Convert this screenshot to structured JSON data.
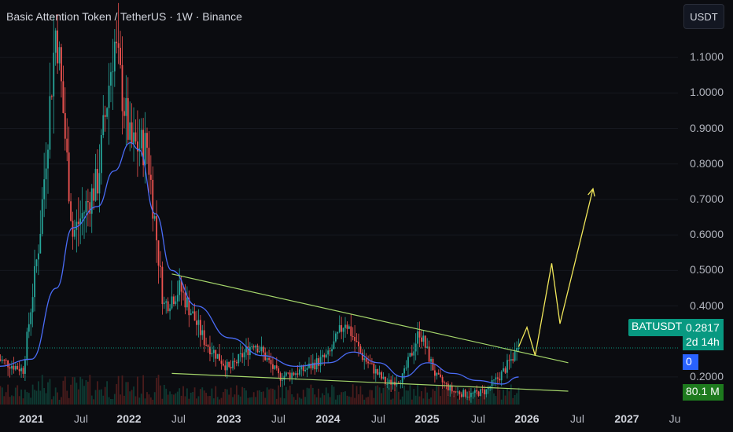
{
  "header": {
    "title": "Basic Attention Token / TetherUS · 1W · Binance",
    "currency_button": "USDT"
  },
  "price_axis": {
    "labels": [
      "1.1000",
      "1.0000",
      "0.9000",
      "0.8000",
      "0.7000",
      "0.6000",
      "0.5000",
      "0.4000",
      "0.2000"
    ],
    "values": [
      1.1,
      1.0,
      0.9,
      0.8,
      0.7,
      0.6,
      0.5,
      0.4,
      0.2
    ]
  },
  "time_axis": {
    "labels": [
      "2021",
      "Jul",
      "2022",
      "Jul",
      "2023",
      "Jul",
      "2024",
      "Jul",
      "2025",
      "Jul",
      "2026",
      "Jul",
      "2027",
      "Ju"
    ],
    "bold": [
      "2021",
      "2022",
      "2023",
      "2024",
      "2025",
      "2026",
      "2027"
    ]
  },
  "tags": {
    "symbol": "BATUSDT",
    "last_price": "0.2817",
    "countdown": "2d 14h",
    "indicator_value": "0",
    "volume": "80.1 M"
  },
  "colors": {
    "background": "#0b0c10",
    "up": "#26a69a",
    "down": "#ef5350",
    "moving_average": "#4a6cf7",
    "trendline": "#a5d66b",
    "projection": "#f0e65a",
    "price_tag": "#089981"
  },
  "chart_data": {
    "type": "candlestick",
    "timeframe": "1W",
    "ylim": [
      0.16,
      1.16
    ],
    "last_price": 0.2817,
    "anchors": [
      {
        "date": "2020-09",
        "price": 0.25
      },
      {
        "date": "2020-12",
        "price": 0.22
      },
      {
        "date": "2021-02",
        "price": 0.6
      },
      {
        "date": "2021-04",
        "price": 1.2
      },
      {
        "date": "2021-06",
        "price": 0.6
      },
      {
        "date": "2021-09",
        "price": 0.75
      },
      {
        "date": "2021-11",
        "price": 1.15
      },
      {
        "date": "2022-01",
        "price": 0.85
      },
      {
        "date": "2022-03",
        "price": 0.85
      },
      {
        "date": "2022-05",
        "price": 0.4
      },
      {
        "date": "2022-07",
        "price": 0.45
      },
      {
        "date": "2022-10",
        "price": 0.3
      },
      {
        "date": "2023-01",
        "price": 0.22
      },
      {
        "date": "2023-04",
        "price": 0.3
      },
      {
        "date": "2023-07",
        "price": 0.2
      },
      {
        "date": "2023-10",
        "price": 0.22
      },
      {
        "date": "2024-01",
        "price": 0.26
      },
      {
        "date": "2024-03",
        "price": 0.36
      },
      {
        "date": "2024-05",
        "price": 0.26
      },
      {
        "date": "2024-08",
        "price": 0.18
      },
      {
        "date": "2024-10",
        "price": 0.2
      },
      {
        "date": "2024-12",
        "price": 0.33
      },
      {
        "date": "2025-02",
        "price": 0.2
      },
      {
        "date": "2025-04",
        "price": 0.16
      },
      {
        "date": "2025-06",
        "price": 0.15
      },
      {
        "date": "2025-08",
        "price": 0.16
      },
      {
        "date": "2025-10",
        "price": 0.21
      },
      {
        "date": "2025-12",
        "price": 0.2817
      }
    ],
    "moving_average": [
      {
        "date": "2020-09",
        "price": 0.23
      },
      {
        "date": "2021-01",
        "price": 0.25
      },
      {
        "date": "2021-04",
        "price": 0.45
      },
      {
        "date": "2021-06",
        "price": 0.62
      },
      {
        "date": "2021-09",
        "price": 0.68
      },
      {
        "date": "2021-11",
        "price": 0.78
      },
      {
        "date": "2022-01",
        "price": 0.86
      },
      {
        "date": "2022-02",
        "price": 0.84
      },
      {
        "date": "2022-04",
        "price": 0.66
      },
      {
        "date": "2022-06",
        "price": 0.5
      },
      {
        "date": "2022-09",
        "price": 0.4
      },
      {
        "date": "2023-01",
        "price": 0.31
      },
      {
        "date": "2023-05",
        "price": 0.26
      },
      {
        "date": "2023-09",
        "price": 0.23
      },
      {
        "date": "2024-01",
        "price": 0.24
      },
      {
        "date": "2024-04",
        "price": 0.27
      },
      {
        "date": "2024-07",
        "price": 0.24
      },
      {
        "date": "2024-10",
        "price": 0.2
      },
      {
        "date": "2025-01",
        "price": 0.24
      },
      {
        "date": "2025-04",
        "price": 0.21
      },
      {
        "date": "2025-07",
        "price": 0.19
      },
      {
        "date": "2025-10",
        "price": 0.18
      },
      {
        "date": "2025-12",
        "price": 0.2
      }
    ],
    "trendlines": [
      {
        "name": "",
        "from": {
          "date": "2022-06",
          "price": 0.49
        },
        "to": {
          "date": "2026-06",
          "price": 0.24
        }
      },
      {
        "name": "",
        "from": {
          "date": "2022-06",
          "price": 0.21
        },
        "to": {
          "date": "2026-06",
          "price": 0.16
        }
      }
    ],
    "projection": [
      {
        "date": "2025-12",
        "price": 0.285
      },
      {
        "date": "2026-01",
        "price": 0.34
      },
      {
        "date": "2026-02",
        "price": 0.26
      },
      {
        "date": "2026-04",
        "price": 0.52
      },
      {
        "date": "2026-05",
        "price": 0.35
      },
      {
        "date": "2026-09",
        "price": 0.73
      }
    ]
  }
}
